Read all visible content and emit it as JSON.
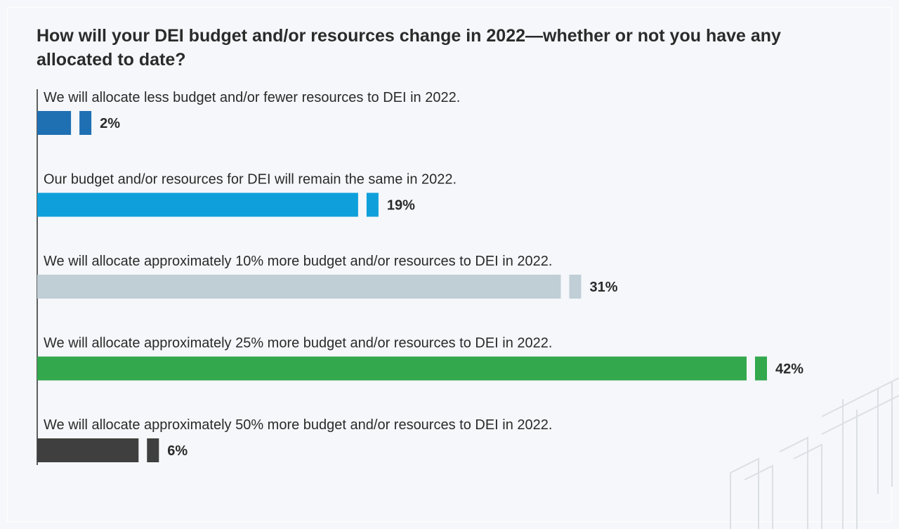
{
  "chart_data": {
    "type": "bar",
    "orientation": "horizontal",
    "title": "How will your DEI budget and/or resources change in 2022—whether or not you have any allocated to date?",
    "categories": [
      "We will allocate less budget and/or fewer resources to DEI in 2022.",
      "Our budget and/or resources for DEI will remain the same in 2022.",
      "We will allocate approximately 10% more budget and/or resources to DEI in 2022.",
      "We will allocate approximately 25% more budget and/or resources to DEI in 2022.",
      "We will allocate approximately 50% more budget and/or resources to DEI in 2022."
    ],
    "values": [
      2,
      19,
      31,
      42,
      6
    ],
    "value_labels": [
      "2%",
      "19%",
      "31%",
      "42%",
      "6%"
    ],
    "colors": [
      "#1f6fb3",
      "#0fa0dc",
      "#c0ced6",
      "#33a84d",
      "#3f3f3f"
    ],
    "unit": "%",
    "xlim": [
      0,
      42
    ],
    "grid": false,
    "legend": "none"
  },
  "style": {
    "background": "#f5f7fa",
    "axis_color": "#2b2b2b",
    "watermark_color": "#dcdfe3"
  }
}
